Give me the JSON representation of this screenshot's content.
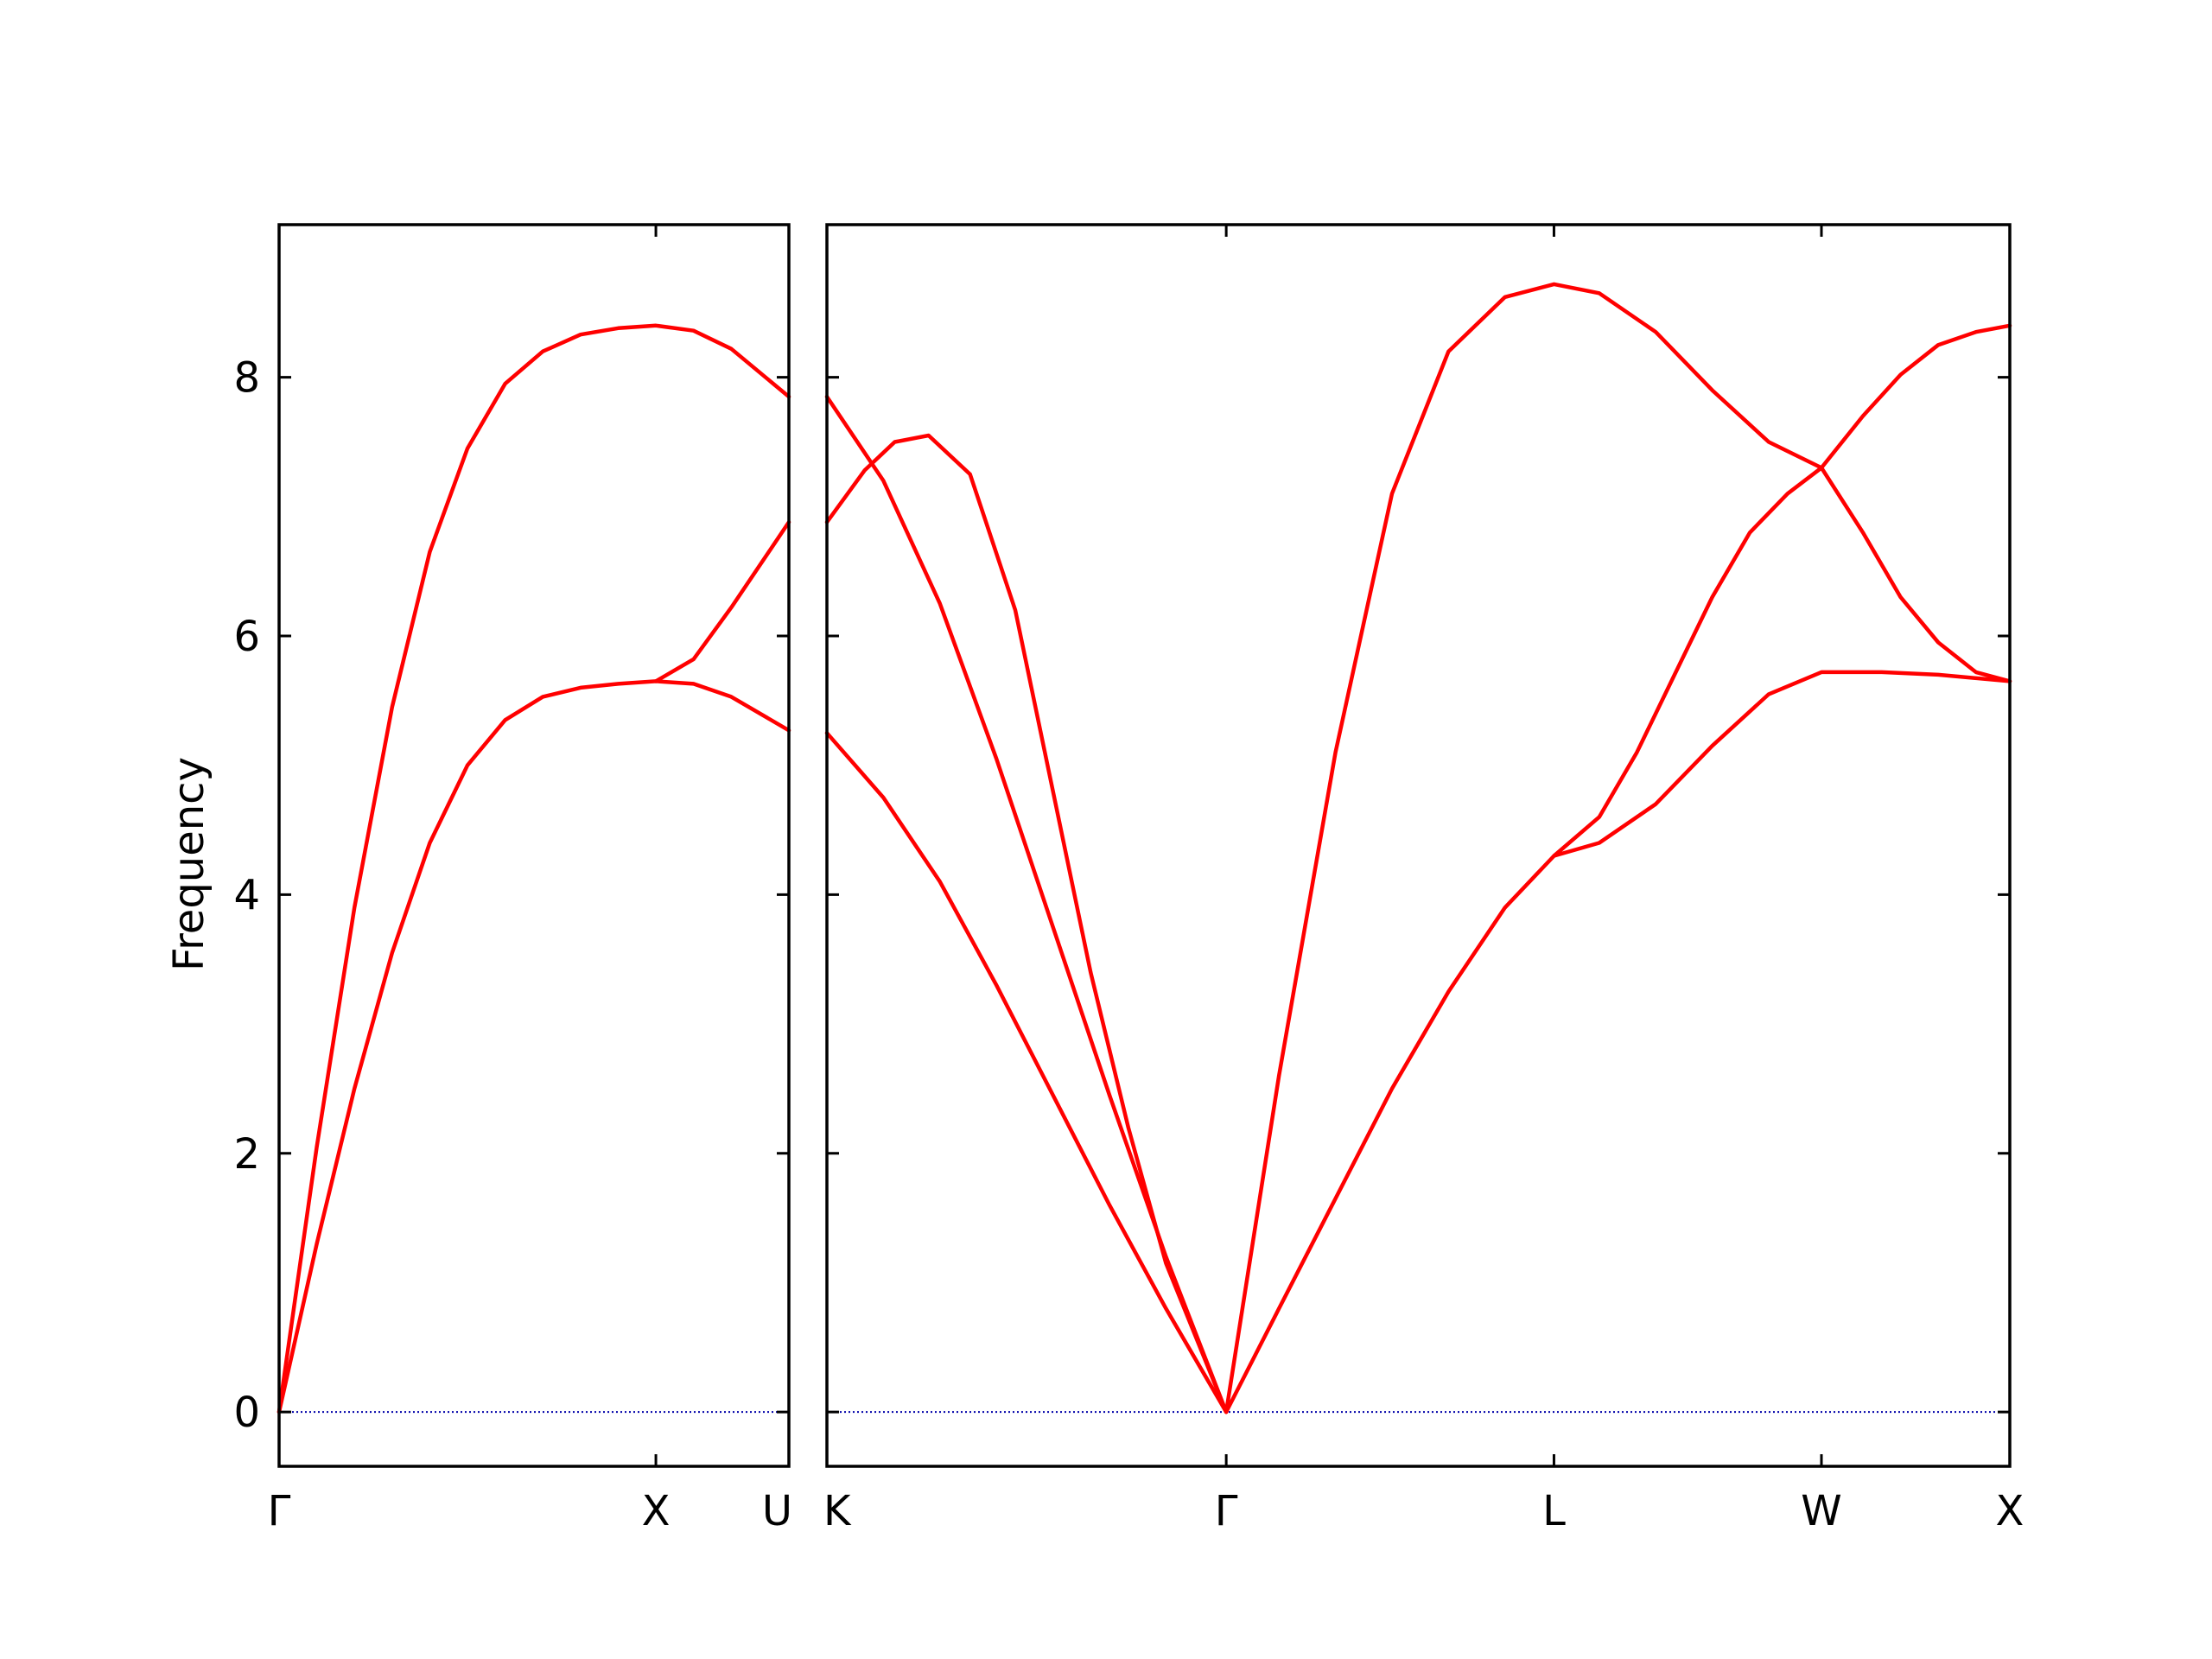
{
  "figure": {
    "ylabel": "Frequency",
    "y_ticks": [
      0,
      2,
      4,
      6,
      8
    ],
    "ylim": [
      -0.42,
      9.18
    ],
    "grid": false,
    "legend": "none",
    "colors": {
      "band": "#ff0000",
      "zero_line": "#0000aa",
      "axes": "#000000"
    }
  },
  "chart_data": [
    {
      "type": "line",
      "panel": "left",
      "title": "",
      "xlabel": "",
      "ylabel": "Frequency",
      "ylim": [
        -0.42,
        9.18
      ],
      "xlim": [
        0,
        1.353
      ],
      "x_ticks": [
        {
          "x": 0,
          "label": "Γ"
        },
        {
          "x": 1,
          "label": "X"
        },
        {
          "x": 1.353,
          "label": "U"
        }
      ],
      "zero_line": 0,
      "series": [
        {
          "points": [
            [
              0,
              0
            ],
            [
              0.1,
              1.3
            ],
            [
              0.2,
              2.5
            ],
            [
              0.3,
              3.55
            ],
            [
              0.4,
              4.4
            ],
            [
              0.5,
              5.0
            ],
            [
              0.6,
              5.35
            ],
            [
              0.7,
              5.53
            ],
            [
              0.8,
              5.6
            ],
            [
              0.9,
              5.63
            ],
            [
              1.0,
              5.65
            ],
            [
              1.1,
              5.63
            ],
            [
              1.2,
              5.53
            ],
            [
              1.353,
              5.27
            ]
          ]
        },
        {
          "points": [
            [
              1.0,
              5.65
            ],
            [
              1.1,
              5.82
            ],
            [
              1.2,
              6.22
            ],
            [
              1.353,
              6.88
            ]
          ]
        },
        {
          "points": [
            [
              0,
              0
            ],
            [
              0.1,
              2.05
            ],
            [
              0.2,
              3.9
            ],
            [
              0.3,
              5.45
            ],
            [
              0.4,
              6.65
            ],
            [
              0.5,
              7.45
            ],
            [
              0.6,
              7.95
            ],
            [
              0.7,
              8.2
            ],
            [
              0.8,
              8.33
            ],
            [
              0.9,
              8.38
            ],
            [
              1.0,
              8.4
            ],
            [
              1.1,
              8.36
            ],
            [
              1.2,
              8.22
            ],
            [
              1.353,
              7.85
            ]
          ]
        }
      ]
    },
    {
      "type": "line",
      "panel": "right",
      "title": "",
      "xlabel": "",
      "ylabel": "",
      "ylim": [
        -0.42,
        9.18
      ],
      "xlim": [
        0,
        3.14
      ],
      "x_ticks": [
        {
          "x": 0,
          "label": "K"
        },
        {
          "x": 1.06,
          "label": "Γ"
        },
        {
          "x": 1.93,
          "label": "L"
        },
        {
          "x": 2.64,
          "label": "W"
        },
        {
          "x": 3.14,
          "label": "X"
        }
      ],
      "zero_line": 0,
      "series": [
        {
          "points": [
            [
              0,
              5.25
            ],
            [
              0.15,
              4.75
            ],
            [
              0.3,
              4.1
            ],
            [
              0.45,
              3.3
            ],
            [
              0.6,
              2.45
            ],
            [
              0.75,
              1.6
            ],
            [
              0.9,
              0.8
            ],
            [
              1.06,
              0
            ]
          ]
        },
        {
          "points": [
            [
              0,
              7.85
            ],
            [
              0.15,
              7.2
            ],
            [
              0.3,
              6.25
            ],
            [
              0.45,
              5.05
            ],
            [
              0.6,
              3.75
            ],
            [
              0.75,
              2.45
            ],
            [
              0.9,
              1.2
            ],
            [
              1.06,
              0
            ]
          ]
        },
        {
          "points": [
            [
              0,
              6.88
            ],
            [
              0.1,
              7.28
            ],
            [
              0.18,
              7.5
            ],
            [
              0.27,
              7.55
            ],
            [
              0.38,
              7.25
            ],
            [
              0.5,
              6.2
            ],
            [
              0.6,
              4.8
            ],
            [
              0.7,
              3.4
            ],
            [
              0.8,
              2.2
            ],
            [
              0.9,
              1.15
            ],
            [
              1.06,
              0
            ]
          ]
        },
        {
          "points": [
            [
              1.06,
              0
            ],
            [
              1.2,
              0.8
            ],
            [
              1.35,
              1.65
            ],
            [
              1.5,
              2.5
            ],
            [
              1.65,
              3.25
            ],
            [
              1.8,
              3.9
            ],
            [
              1.93,
              4.3
            ],
            [
              2.05,
              4.4
            ],
            [
              2.2,
              4.7
            ],
            [
              2.35,
              5.15
            ],
            [
              2.5,
              5.55
            ],
            [
              2.64,
              5.72
            ],
            [
              2.8,
              5.72
            ],
            [
              2.95,
              5.7
            ],
            [
              3.14,
              5.65
            ]
          ]
        },
        {
          "points": [
            [
              1.93,
              4.3
            ],
            [
              2.05,
              4.6
            ],
            [
              2.15,
              5.1
            ],
            [
              2.25,
              5.7
            ],
            [
              2.35,
              6.3
            ],
            [
              2.45,
              6.8
            ],
            [
              2.55,
              7.1
            ],
            [
              2.64,
              7.3
            ],
            [
              2.75,
              6.8
            ],
            [
              2.85,
              6.3
            ],
            [
              2.95,
              5.95
            ],
            [
              3.05,
              5.72
            ],
            [
              3.14,
              5.65
            ]
          ]
        },
        {
          "points": [
            [
              1.06,
              0
            ],
            [
              1.2,
              2.6
            ],
            [
              1.35,
              5.1
            ],
            [
              1.5,
              7.1
            ],
            [
              1.65,
              8.2
            ],
            [
              1.8,
              8.62
            ],
            [
              1.93,
              8.72
            ],
            [
              2.05,
              8.65
            ],
            [
              2.2,
              8.35
            ],
            [
              2.35,
              7.9
            ],
            [
              2.5,
              7.5
            ],
            [
              2.64,
              7.3
            ],
            [
              2.75,
              7.7
            ],
            [
              2.85,
              8.02
            ],
            [
              2.95,
              8.25
            ],
            [
              3.05,
              8.35
            ],
            [
              3.14,
              8.4
            ]
          ]
        }
      ]
    }
  ]
}
